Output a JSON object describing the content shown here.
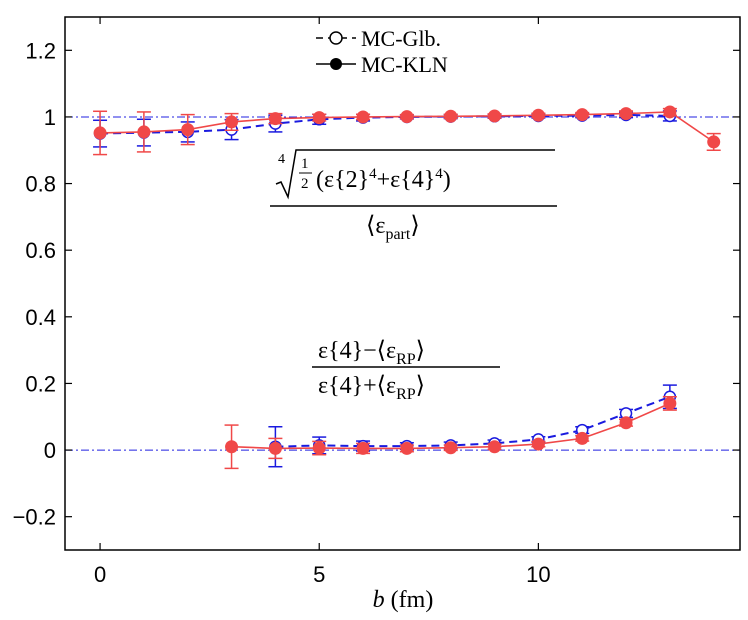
{
  "chart_data": {
    "type": "line",
    "xlabel": "b (fm)",
    "xlabel_var": "b",
    "xlabel_unit": "(fm)",
    "xlim": [
      -0.8,
      14.6
    ],
    "ylim": [
      -0.3,
      1.3
    ],
    "x_ticks": [
      0,
      5,
      10
    ],
    "x_tick_labels": [
      "0",
      "5",
      "10"
    ],
    "y_ticks": [
      -0.2,
      0,
      0.2,
      0.4,
      0.6,
      0.8,
      1,
      1.2
    ],
    "y_tick_labels": [
      "−0.2",
      "0",
      "0.2",
      "0.4",
      "0.6",
      "0.8",
      "1",
      "1.2"
    ],
    "reference_lines": [
      1,
      0
    ],
    "legend": {
      "placement": "top-center",
      "entries": [
        {
          "series": "mcglb",
          "label": "MC-Glb."
        },
        {
          "series": "mckln",
          "label": "MC-KLN"
        }
      ]
    },
    "annotations": {
      "upper": {
        "root_index": "4",
        "half_num": "1",
        "half_den": "2",
        "lparen": "(",
        "eps2": "ε{2}",
        "exp_a": "4",
        "plus": "+",
        "eps4": "ε{4}",
        "exp_b": "4",
        "rparen": ")",
        "den_open": "⟨ε",
        "den_sub": "part",
        "den_close": "⟩"
      },
      "lower": {
        "num_a": "ε{4}−⟨ε",
        "num_sub": "RP",
        "num_close": "⟩",
        "den_a": "ε{4}+⟨ε",
        "den_sub": "RP",
        "den_close": "⟩"
      }
    },
    "series": [
      {
        "id": "mcglb",
        "name": "MC-Glb.",
        "color": "#1a1adf",
        "line_style": "dashed",
        "marker": "open-circle",
        "groups": [
          {
            "x": [
              0,
              1,
              2,
              3,
              4,
              5,
              6,
              7,
              8,
              9,
              10,
              11,
              12,
              13
            ],
            "y": [
              0.95,
              0.953,
              0.955,
              0.962,
              0.98,
              0.993,
              0.998,
              1.0,
              1.001,
              1.002,
              1.003,
              1.004,
              1.006,
              1.003
            ],
            "err": [
              0.04,
              0.04,
              0.03,
              0.03,
              0.025,
              0.015,
              0.01,
              0.006,
              0.006,
              0.006,
              0.006,
              0.006,
              0.008,
              0.015
            ]
          },
          {
            "x": [
              4,
              5,
              6,
              7,
              8,
              9,
              10,
              11,
              12,
              13
            ],
            "y": [
              0.01,
              0.014,
              0.012,
              0.012,
              0.014,
              0.02,
              0.032,
              0.06,
              0.11,
              0.16
            ],
            "err": [
              0.06,
              0.025,
              0.015,
              0.01,
              0.01,
              0.01,
              0.008,
              0.01,
              0.012,
              0.035
            ]
          }
        ]
      },
      {
        "id": "mckln",
        "name": "MC-KLN",
        "color": "#f04848",
        "line_style": "solid",
        "marker": "filled-circle",
        "groups": [
          {
            "x": [
              0,
              1,
              2,
              3,
              4,
              5,
              6,
              7,
              8,
              9,
              10,
              11,
              12,
              13,
              14
            ],
            "y": [
              0.952,
              0.955,
              0.962,
              0.985,
              0.995,
              0.998,
              1.0,
              1.001,
              1.002,
              1.003,
              1.005,
              1.007,
              1.01,
              1.015,
              0.925
            ],
            "err": [
              0.065,
              0.06,
              0.045,
              0.025,
              0.015,
              0.01,
              0.008,
              0.006,
              0.006,
              0.006,
              0.006,
              0.006,
              0.008,
              0.01,
              0.025
            ]
          },
          {
            "x": [
              3,
              4,
              5,
              6,
              7,
              8,
              9,
              10,
              11,
              12,
              13
            ],
            "y": [
              0.01,
              0.005,
              0.006,
              0.005,
              0.005,
              0.007,
              0.01,
              0.018,
              0.035,
              0.082,
              0.14
            ],
            "err": [
              0.065,
              0.03,
              0.02,
              0.015,
              0.01,
              0.008,
              0.008,
              0.008,
              0.008,
              0.01,
              0.02
            ]
          }
        ]
      }
    ]
  }
}
